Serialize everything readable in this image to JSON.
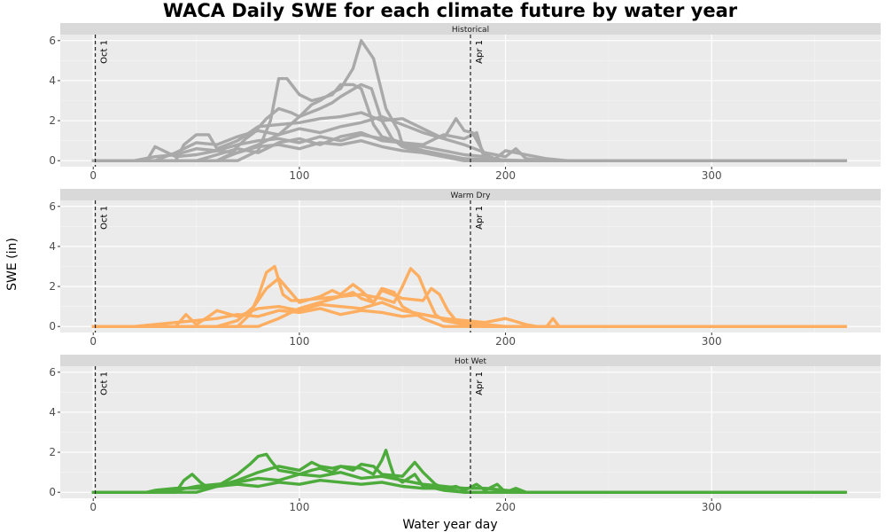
{
  "chart_data": {
    "type": "line",
    "title": "WACA Daily SWE for each climate future by water year",
    "xlabel": "Water year day",
    "ylabel": "SWE (in)",
    "xlim": [
      -16,
      382
    ],
    "ylim": [
      -0.3,
      6.3
    ],
    "xticks": [
      0,
      100,
      200,
      300
    ],
    "yticks": [
      0,
      2,
      4,
      6
    ],
    "grid": true,
    "legend": "none",
    "reference_lines": [
      {
        "x": 1,
        "label": "Oct 1"
      },
      {
        "x": 183,
        "label": "Apr 1"
      }
    ],
    "panels": [
      {
        "name": "Historical",
        "color": "#a9a9a9",
        "series": [
          {
            "x": [
              0,
              60,
              66,
              70,
              74,
              78,
              84,
              90,
              96,
              100,
              106,
              110,
              116,
              120,
              126,
              130,
              136,
              142,
              148,
              150,
              160,
              180,
              210,
              240,
              365
            ],
            "values": [
              0,
              0,
              0.3,
              0.7,
              1.1,
              1.4,
              2.1,
              2.6,
              2.4,
              2.2,
              2.8,
              3.0,
              3.4,
              3.6,
              4.6,
              6.0,
              5.1,
              2.6,
              1.5,
              0.8,
              0.5,
              0.1,
              0,
              0,
              0
            ]
          },
          {
            "x": [
              0,
              70,
              80,
              86,
              90,
              94,
              100,
              106,
              110,
              116,
              120,
              126,
              130,
              136,
              140,
              150,
              160,
              170,
              180,
              190,
              365
            ],
            "values": [
              0,
              0,
              0.5,
              2.0,
              4.1,
              4.1,
              3.3,
              3.0,
              3.1,
              3.3,
              3.8,
              3.8,
              3.6,
              1.8,
              1.2,
              0.9,
              0.5,
              0.3,
              0.1,
              0,
              0
            ]
          },
          {
            "x": [
              0,
              60,
              70,
              80,
              90,
              100,
              110,
              116,
              120,
              130,
              135,
              140,
              145,
              150,
              160,
              170,
              180,
              365
            ],
            "values": [
              0,
              0,
              0.4,
              0.8,
              1.3,
              2.2,
              2.6,
              2.9,
              3.2,
              3.8,
              3.6,
              2.0,
              1.1,
              0.7,
              0.4,
              0.2,
              0,
              0
            ]
          },
          {
            "x": [
              0,
              40,
              44,
              50,
              56,
              60,
              70,
              80,
              90,
              100,
              110,
              120,
              130,
              140,
              150,
              160,
              170,
              176,
              180,
              184,
              190,
              195,
              200,
              210,
              220,
              230,
              365
            ],
            "values": [
              0,
              0,
              0.8,
              1.3,
              1.3,
              0.6,
              1.0,
              1.7,
              1.8,
              1.9,
              2.1,
              2.2,
              2.4,
              2.0,
              2.1,
              1.6,
              1.1,
              2.1,
              1.5,
              1.4,
              0.3,
              0.1,
              0.5,
              0.3,
              0.1,
              0,
              0
            ]
          },
          {
            "x": [
              0,
              30,
              40,
              50,
              60,
              70,
              80,
              90,
              100,
              110,
              120,
              130,
              140,
              150,
              160,
              170,
              180,
              190,
              200,
              205,
              210,
              220,
              365
            ],
            "values": [
              0,
              0,
              0.4,
              0.9,
              0.8,
              1.2,
              1.5,
              1.3,
              1.6,
              1.4,
              1.7,
              1.9,
              2.2,
              1.8,
              1.4,
              1.1,
              0.8,
              0.4,
              0.2,
              0.6,
              0.1,
              0,
              0
            ]
          },
          {
            "x": [
              0,
              20,
              30,
              40,
              50,
              60,
              70,
              80,
              90,
              100,
              110,
              120,
              130,
              140,
              150,
              160,
              170,
              180,
              190,
              200,
              365
            ],
            "values": [
              0,
              0,
              0.2,
              0.3,
              0.6,
              0.5,
              0.8,
              1.0,
              1.1,
              0.9,
              1.2,
              1.0,
              1.3,
              1.1,
              0.9,
              0.7,
              0.5,
              0.3,
              0.2,
              0,
              0
            ]
          },
          {
            "x": [
              0,
              26,
              30,
              40,
              50,
              60,
              70,
              80,
              90,
              100,
              110,
              120,
              130,
              140,
              150,
              160,
              170,
              180,
              365
            ],
            "values": [
              0,
              0,
              0.7,
              0.2,
              0.3,
              0.5,
              0.4,
              0.7,
              0.8,
              0.6,
              0.9,
              0.8,
              1.0,
              0.7,
              0.5,
              0.4,
              0.2,
              0,
              0
            ]
          },
          {
            "x": [
              0,
              50,
              60,
              70,
              80,
              90,
              100,
              110,
              120,
              130,
              140,
              150,
              160,
              170,
              180,
              186,
              190,
              365
            ],
            "values": [
              0,
              0,
              0.3,
              0.6,
              0.4,
              0.9,
              1.1,
              0.8,
              1.2,
              1.4,
              1.0,
              0.9,
              0.8,
              1.3,
              1.1,
              1.4,
              0,
              0
            ]
          }
        ]
      },
      {
        "name": "Warm Dry",
        "color": "#fdae61",
        "series": [
          {
            "x": [
              0,
              70,
              76,
              80,
              84,
              88,
              92,
              96,
              100,
              110,
              120,
              130,
              140,
              146,
              150,
              154,
              158,
              162,
              166,
              170,
              180,
              190,
              365
            ],
            "values": [
              0,
              0,
              0.6,
              1.5,
              2.7,
              3.0,
              1.6,
              1.3,
              1.3,
              1.4,
              1.5,
              1.6,
              1.4,
              1.2,
              2.0,
              2.9,
              2.5,
              1.5,
              0.6,
              0.3,
              0.1,
              0,
              0
            ]
          },
          {
            "x": [
              0,
              60,
              70,
              78,
              84,
              90,
              100,
              110,
              116,
              120,
              126,
              130,
              136,
              140,
              146,
              150,
              160,
              170,
              365
            ],
            "values": [
              0,
              0,
              0.3,
              1.0,
              1.9,
              2.4,
              1.2,
              1.5,
              1.8,
              1.6,
              2.1,
              1.8,
              1.2,
              1.9,
              1.7,
              1.0,
              0.4,
              0,
              0
            ]
          },
          {
            "x": [
              0,
              80,
              90,
              100,
              110,
              120,
              126,
              130,
              136,
              140,
              150,
              160,
              164,
              168,
              172,
              176,
              180,
              190,
              365
            ],
            "values": [
              0,
              0,
              0.4,
              0.9,
              1.2,
              1.5,
              1.7,
              1.4,
              1.2,
              1.8,
              1.4,
              1.3,
              1.9,
              1.6,
              0.8,
              0.3,
              0.1,
              0,
              0
            ]
          },
          {
            "x": [
              0,
              40,
              45,
              50,
              56,
              60,
              70,
              80,
              90,
              100,
              110,
              120,
              130,
              140,
              150,
              160,
              170,
              180,
              190,
              200,
              210,
              215,
              220,
              223,
              226,
              365
            ],
            "values": [
              0,
              0,
              0.6,
              0.1,
              0.5,
              0.8,
              0.5,
              0.9,
              1.0,
              0.8,
              1.1,
              1.0,
              0.9,
              1.2,
              0.8,
              0.6,
              0.4,
              0.3,
              0.2,
              0.4,
              0.1,
              0,
              0,
              0.4,
              0,
              0
            ]
          },
          {
            "x": [
              0,
              20,
              30,
              40,
              50,
              60,
              70,
              80,
              90,
              100,
              110,
              120,
              130,
              140,
              150,
              160,
              170,
              180,
              190,
              200,
              365
            ],
            "values": [
              0,
              0,
              0.1,
              0.2,
              0.3,
              0.4,
              0.6,
              0.5,
              0.8,
              0.7,
              0.9,
              0.6,
              0.8,
              0.7,
              0.5,
              0.6,
              0.4,
              0.2,
              0.1,
              0,
              0
            ]
          }
        ]
      },
      {
        "name": "Hot Wet",
        "color": "#4dab3c",
        "series": [
          {
            "x": [
              0,
              40,
              44,
              48,
              52,
              56,
              60,
              70,
              76,
              80,
              84,
              86,
              90,
              96,
              100,
              106,
              110,
              116,
              120,
              130,
              136,
              140,
              142,
              144,
              146,
              150,
              156,
              160,
              166,
              170,
              180,
              190,
              365
            ],
            "values": [
              0,
              0,
              0.6,
              0.9,
              0.5,
              0.2,
              0.3,
              0.9,
              1.4,
              1.8,
              1.9,
              1.6,
              1.1,
              1.0,
              0.9,
              1.1,
              1.2,
              1.0,
              1.3,
              1.2,
              0.9,
              1.6,
              2.1,
              1.4,
              0.8,
              0.5,
              0.9,
              0.3,
              0.2,
              0.1,
              0,
              0,
              0
            ]
          },
          {
            "x": [
              0,
              50,
              60,
              70,
              80,
              90,
              100,
              106,
              110,
              116,
              120,
              126,
              130,
              136,
              140,
              150,
              156,
              160,
              166,
              170,
              180,
              365
            ],
            "values": [
              0,
              0,
              0.3,
              0.6,
              1.0,
              1.3,
              1.1,
              1.5,
              1.3,
              1.2,
              1.3,
              1.1,
              1.4,
              1.3,
              0.9,
              0.8,
              1.5,
              1.0,
              0.4,
              0.2,
              0,
              0
            ]
          },
          {
            "x": [
              0,
              30,
              40,
              50,
              60,
              70,
              80,
              90,
              100,
              110,
              120,
              130,
              140,
              150,
              160,
              170,
              180,
              190,
              200,
              210,
              365
            ],
            "values": [
              0,
              0,
              0.1,
              0.3,
              0.4,
              0.5,
              0.7,
              0.6,
              0.9,
              0.8,
              1.0,
              0.7,
              0.8,
              0.6,
              0.4,
              0.3,
              0.2,
              0.2,
              0.1,
              0,
              0
            ]
          },
          {
            "x": [
              0,
              26,
              30,
              40,
              50,
              60,
              70,
              80,
              90,
              100,
              110,
              120,
              130,
              140,
              150,
              160,
              170,
              176,
              180,
              186,
              190,
              196,
              200,
              205,
              210,
              365
            ],
            "values": [
              0,
              0,
              0.1,
              0.2,
              0.2,
              0.3,
              0.4,
              0.3,
              0.5,
              0.4,
              0.6,
              0.5,
              0.4,
              0.5,
              0.3,
              0.2,
              0.2,
              0.3,
              0.1,
              0.4,
              0.1,
              0.4,
              0,
              0.2,
              0,
              0
            ]
          }
        ]
      }
    ]
  }
}
